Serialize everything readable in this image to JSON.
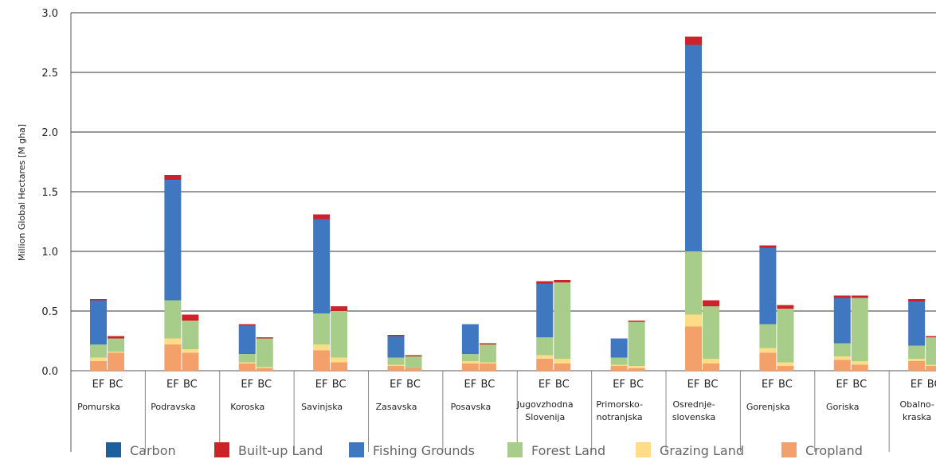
{
  "chart_data": {
    "type": "bar",
    "stacked": true,
    "ylabel": "Million Global Hectares [M gha]",
    "ylim": [
      0,
      3.0
    ],
    "yticks": [
      "0.0",
      "0.5",
      "1.0",
      "1.5",
      "2.0",
      "2.5",
      "3.0"
    ],
    "grid": true,
    "legend_position": "bottom",
    "bar_labels": [
      "EF",
      "BC"
    ],
    "categories": [
      [
        "Pomurska"
      ],
      [
        "Podravska"
      ],
      [
        "Koroska"
      ],
      [
        "Savinjska"
      ],
      [
        "Zasavska"
      ],
      [
        "Posavska"
      ],
      [
        "Jugovzhodna",
        "Slovenija"
      ],
      [
        "Primorsko-",
        "notranjska"
      ],
      [
        "Osrednje-",
        "slovenska"
      ],
      [
        "Gorenjska"
      ],
      [
        "Goriska"
      ],
      [
        "Obalno-",
        "kraska"
      ]
    ],
    "series": [
      {
        "name": "Cropland",
        "color": "#f4a06a",
        "ef": [
          0.08,
          0.22,
          0.06,
          0.17,
          0.04,
          0.06,
          0.1,
          0.04,
          0.37,
          0.15,
          0.09,
          0.08
        ],
        "bc": [
          0.15,
          0.15,
          0.02,
          0.07,
          0.02,
          0.06,
          0.06,
          0.02,
          0.06,
          0.04,
          0.05,
          0.04
        ]
      },
      {
        "name": "Grazing Land",
        "color": "#ffdd88",
        "ef": [
          0.03,
          0.05,
          0.01,
          0.05,
          0.01,
          0.02,
          0.03,
          0.01,
          0.1,
          0.04,
          0.03,
          0.02
        ],
        "bc": [
          0.01,
          0.03,
          0.01,
          0.04,
          0.0,
          0.01,
          0.04,
          0.02,
          0.04,
          0.03,
          0.03,
          0.01
        ]
      },
      {
        "name": "Forest Land",
        "color": "#a8cd8a",
        "ef": [
          0.11,
          0.32,
          0.07,
          0.26,
          0.06,
          0.06,
          0.15,
          0.06,
          0.53,
          0.2,
          0.11,
          0.11
        ],
        "bc": [
          0.11,
          0.24,
          0.24,
          0.39,
          0.1,
          0.15,
          0.64,
          0.37,
          0.44,
          0.45,
          0.53,
          0.23
        ]
      },
      {
        "name": "Fishing Grounds",
        "color": "#3f78c1",
        "ef": [
          0.37,
          1.01,
          0.24,
          0.79,
          0.18,
          0.25,
          0.45,
          0.16,
          1.73,
          0.64,
          0.38,
          0.37
        ],
        "bc": [
          0.0,
          0.0,
          0.0,
          0.0,
          0.0,
          0.0,
          0.0,
          0.0,
          0.0,
          0.0,
          0.0,
          0.0
        ]
      },
      {
        "name": "Built-up Land",
        "color": "#cc2229",
        "ef": [
          0.01,
          0.04,
          0.01,
          0.04,
          0.01,
          0.0,
          0.02,
          0.0,
          0.07,
          0.02,
          0.02,
          0.02
        ],
        "bc": [
          0.02,
          0.05,
          0.01,
          0.04,
          0.01,
          0.01,
          0.02,
          0.01,
          0.05,
          0.03,
          0.02,
          0.01
        ]
      },
      {
        "name": "Carbon",
        "color": "#1c5f9e",
        "ef": [
          0,
          0,
          0,
          0,
          0,
          0,
          0,
          0,
          0,
          0,
          0,
          0
        ],
        "bc": [
          0,
          0,
          0,
          0,
          0,
          0,
          0,
          0,
          0,
          0,
          0,
          0
        ]
      }
    ],
    "legend": [
      "Carbon",
      "Built-up Land",
      "Fishing Grounds",
      "Forest Land",
      "Grazing Land",
      "Cropland"
    ]
  }
}
